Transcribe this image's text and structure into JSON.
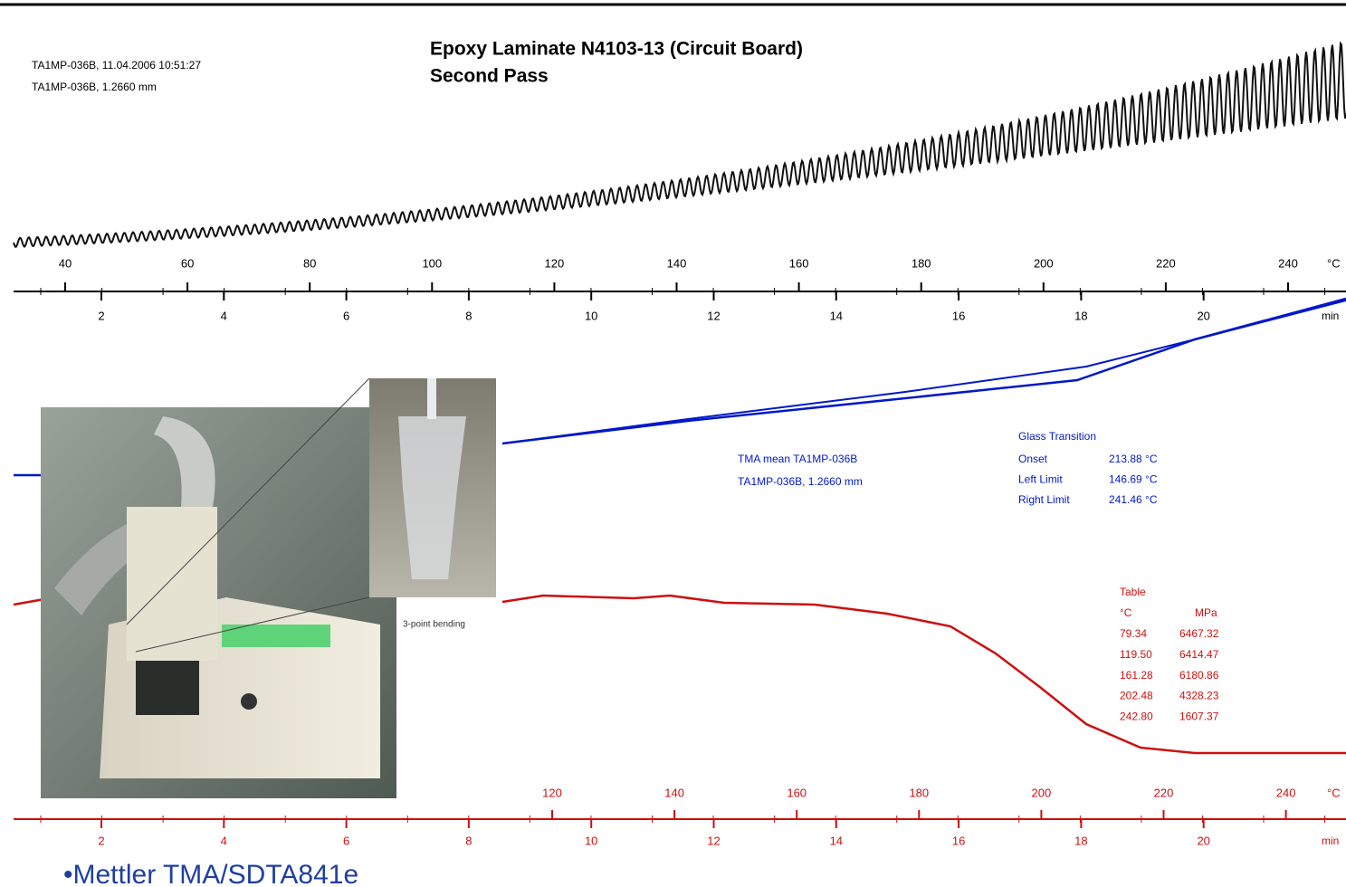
{
  "header": {
    "run_info": [
      "TA1MP-036B, 11.04.2006 10:51:27",
      "TA1MP-036B, 1.2660 mm"
    ],
    "title": "Epoxy Laminate N4103-13 (Circuit Board)",
    "subtitle": "Second Pass"
  },
  "top_axis": {
    "temperature_ticks": [
      40,
      60,
      80,
      100,
      120,
      140,
      160,
      180,
      200,
      220,
      240
    ],
    "temperature_unit": "°C",
    "time_ticks": [
      2,
      4,
      6,
      8,
      10,
      12,
      14,
      16,
      18,
      20
    ],
    "time_unit": "min"
  },
  "legend": {
    "lines": [
      "TMA mean  TA1MP-036B",
      "TA1MP-036B, 1.2660 mm"
    ]
  },
  "glass_transition": {
    "title": "Glass Transition",
    "rows": [
      [
        "Onset",
        "213.88 °C"
      ],
      [
        "Left Limit",
        "146.69 °C"
      ],
      [
        "Right Limit",
        "241.46 °C"
      ]
    ]
  },
  "table": {
    "title": "Table",
    "columns": [
      "°C",
      "MPa"
    ],
    "rows": [
      [
        "79.34",
        "6467.32"
      ],
      [
        "119.50",
        "6414.47"
      ],
      [
        "161.28",
        "6180.86"
      ],
      [
        "202.48",
        "4328.23"
      ],
      [
        "242.80",
        "1607.37"
      ]
    ]
  },
  "bottom_axis": {
    "temperature_ticks": [
      120,
      140,
      160,
      180,
      200,
      220,
      240
    ],
    "temperature_unit": "°C",
    "time_ticks": [
      2,
      4,
      6,
      8,
      10,
      12,
      14,
      16,
      18,
      20
    ],
    "time_unit": "min"
  },
  "photo_caption": "3-point bending",
  "footer": "•Mettler TMA/SDTA841e"
}
